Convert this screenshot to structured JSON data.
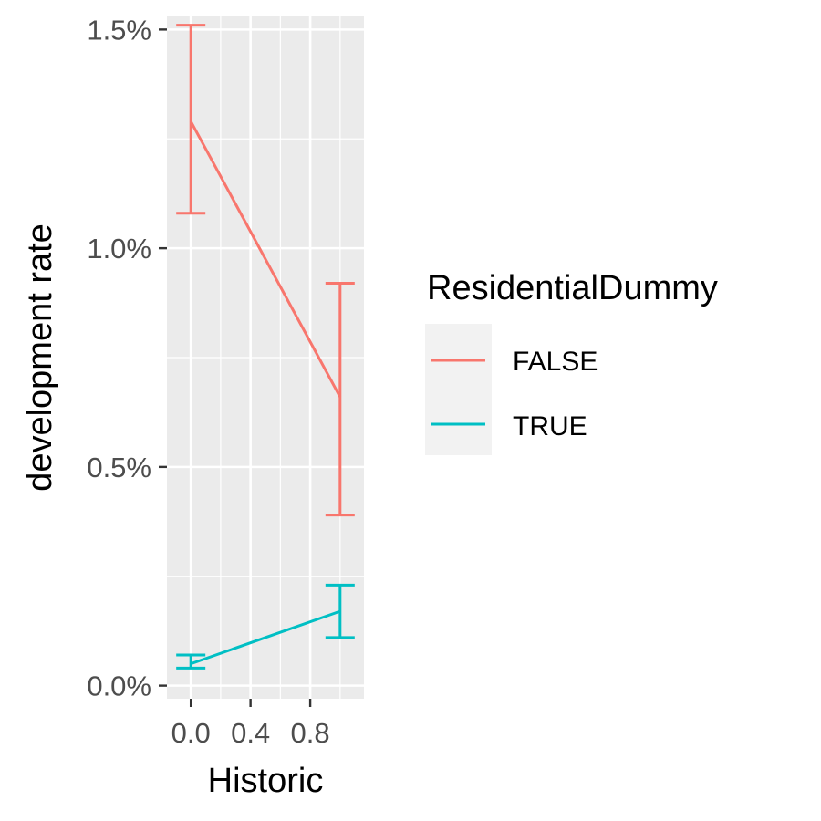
{
  "chart_data": {
    "type": "line",
    "title": "",
    "xlabel": "Historic",
    "ylabel": "development rate",
    "xlim": [
      -0.16,
      1.16
    ],
    "ylim": [
      -0.0003,
      0.0153
    ],
    "x_ticks": [
      0.0,
      0.4,
      0.8
    ],
    "x_tick_labels": [
      "0.0",
      "0.4",
      "0.8"
    ],
    "y_ticks": [
      0.0,
      0.005,
      0.01,
      0.015
    ],
    "y_tick_labels": [
      "0.0%",
      "0.5%",
      "1.0%",
      "1.5%"
    ],
    "grid": true,
    "legend": {
      "title": "ResidentialDummy",
      "placement": "right"
    },
    "series": [
      {
        "name": "FALSE",
        "color": "#F8766D",
        "x": [
          0,
          1
        ],
        "y": [
          0.0129,
          0.0066
        ],
        "ymin": [
          0.0108,
          0.0039
        ],
        "ymax": [
          0.0151,
          0.0092
        ]
      },
      {
        "name": "TRUE",
        "color": "#00BFC4",
        "x": [
          0,
          1
        ],
        "y": [
          0.0005,
          0.0017
        ],
        "ymin": [
          0.0004,
          0.0011
        ],
        "ymax": [
          0.0007,
          0.0023
        ]
      }
    ]
  }
}
